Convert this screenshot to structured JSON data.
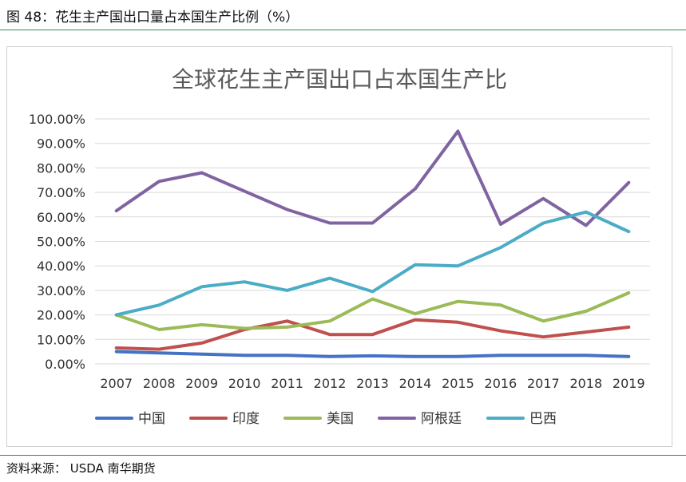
{
  "figure": {
    "caption": "图 48：花生主产国出口量占本国生产比例（%）",
    "source": "资料来源： USDA 南华期货"
  },
  "chart_data": {
    "type": "line",
    "title": "全球花生主产国出口占本国生产比",
    "x": [
      "2007",
      "2008",
      "2009",
      "2010",
      "2011",
      "2012",
      "2013",
      "2014",
      "2015",
      "2016",
      "2017",
      "2018",
      "2019"
    ],
    "y_tick_labels": [
      "0.00%",
      "10.00%",
      "20.00%",
      "30.00%",
      "40.00%",
      "50.00%",
      "60.00%",
      "70.00%",
      "80.00%",
      "90.00%",
      "100.00%"
    ],
    "ylim": [
      0,
      100
    ],
    "y_unit": "%",
    "grid": true,
    "legend_position": "bottom",
    "series": [
      {
        "name": "中国",
        "color": "#4472C4",
        "values": [
          5.0,
          4.5,
          4.0,
          3.5,
          3.5,
          3.0,
          3.3,
          3.0,
          3.0,
          3.5,
          3.5,
          3.5,
          3.0
        ]
      },
      {
        "name": "印度",
        "color": "#C0504D",
        "values": [
          6.5,
          6.0,
          8.5,
          14.0,
          17.5,
          12.0,
          12.0,
          18.0,
          17.0,
          13.5,
          11.0,
          13.0,
          15.0
        ]
      },
      {
        "name": "美国",
        "color": "#9BBB59",
        "values": [
          20.0,
          14.0,
          16.0,
          14.5,
          15.0,
          17.5,
          26.5,
          20.5,
          25.5,
          24.0,
          17.5,
          21.5,
          29.0
        ]
      },
      {
        "name": "阿根廷",
        "color": "#8064A2",
        "values": [
          62.5,
          74.5,
          78.0,
          70.5,
          63.0,
          57.5,
          57.5,
          71.5,
          95.0,
          57.0,
          67.5,
          56.5,
          74.0
        ]
      },
      {
        "name": "巴西",
        "color": "#4BACC6",
        "values": [
          20.0,
          24.0,
          31.5,
          33.5,
          30.0,
          35.0,
          29.5,
          40.5,
          40.0,
          47.5,
          57.5,
          62.0,
          54.0
        ]
      }
    ]
  }
}
